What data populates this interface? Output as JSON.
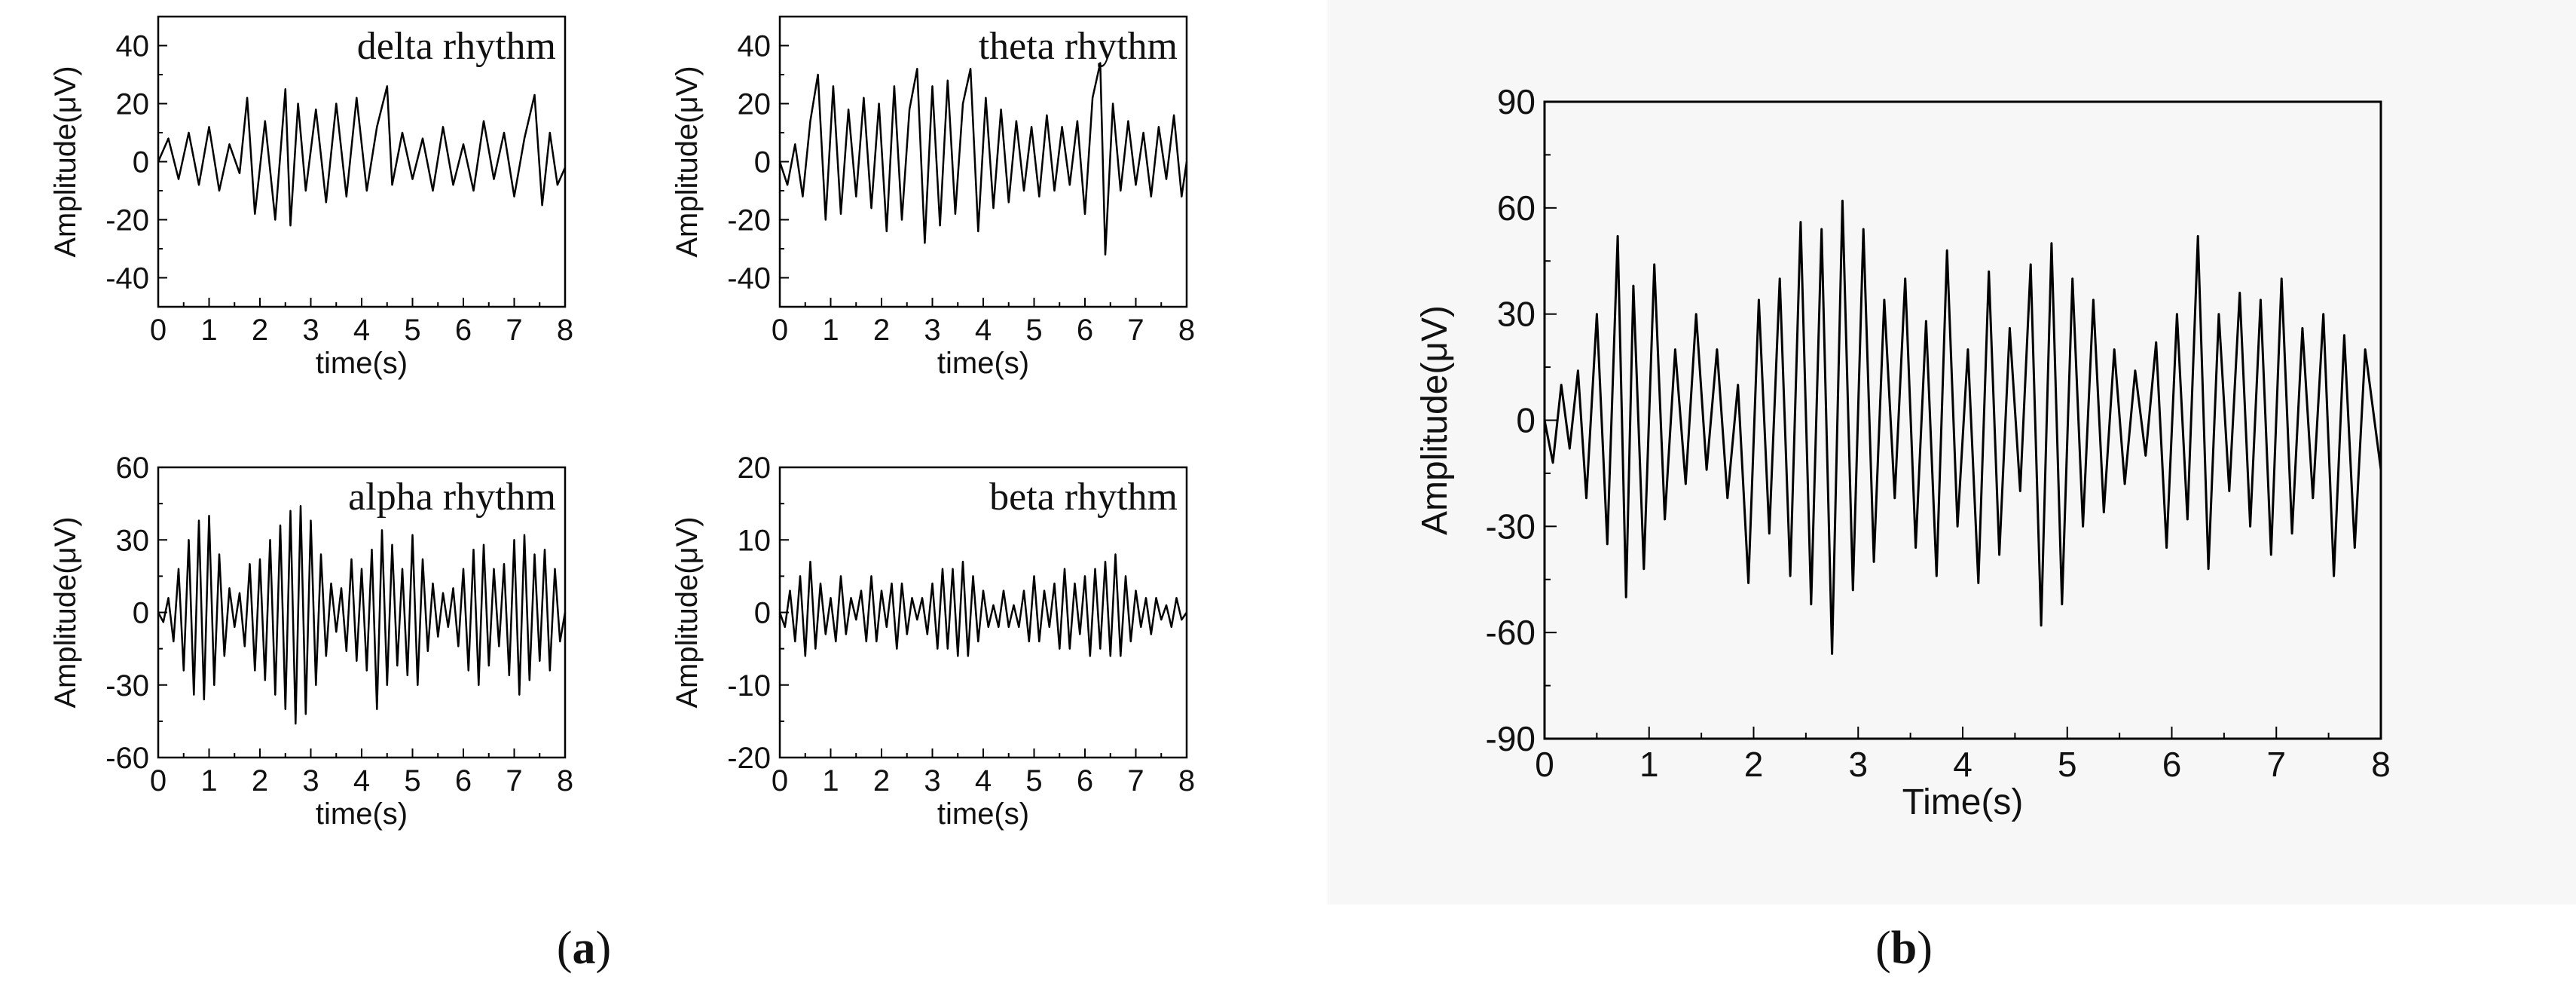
{
  "panels": {
    "a": {
      "open": "(",
      "letter": "a",
      "close": ")"
    },
    "b": {
      "open": "(",
      "letter": "b",
      "close": ")"
    }
  },
  "chart_data": [
    {
      "type": "line",
      "annotation": "delta rhythm",
      "xlabel": "time(s)",
      "ylabel": "Amplitude(μV)",
      "xlim": [
        0,
        8
      ],
      "ylim": [
        -50,
        50
      ],
      "xticks": [
        0,
        1,
        2,
        3,
        4,
        5,
        6,
        7,
        8
      ],
      "yticks": [
        -40,
        -20,
        0,
        20,
        40
      ],
      "grid": false,
      "series": [
        {
          "x": [
            0,
            0.2,
            0.4,
            0.6,
            0.8,
            1.0,
            1.2,
            1.4,
            1.6,
            1.75,
            1.9,
            2.1,
            2.3,
            2.5,
            2.6,
            2.75,
            2.9,
            3.1,
            3.3,
            3.5,
            3.7,
            3.9,
            4.1,
            4.3,
            4.5,
            4.6,
            4.8,
            5.0,
            5.2,
            5.4,
            5.6,
            5.8,
            6.0,
            6.2,
            6.4,
            6.6,
            6.8,
            7.0,
            7.2,
            7.4,
            7.55,
            7.7,
            7.85,
            8.0
          ],
          "y": [
            0,
            8,
            -6,
            10,
            -8,
            12,
            -10,
            6,
            -4,
            22,
            -18,
            14,
            -20,
            25,
            -22,
            20,
            -10,
            18,
            -14,
            20,
            -12,
            22,
            -10,
            12,
            26,
            -8,
            10,
            -6,
            8,
            -10,
            12,
            -8,
            6,
            -10,
            14,
            -6,
            10,
            -12,
            8,
            23,
            -15,
            10,
            -8,
            -2
          ]
        }
      ]
    },
    {
      "type": "line",
      "annotation": "theta rhythm",
      "xlabel": "time(s)",
      "ylabel": "Amplitude(μV)",
      "xlim": [
        0,
        8
      ],
      "ylim": [
        -50,
        50
      ],
      "xticks": [
        0,
        1,
        2,
        3,
        4,
        5,
        6,
        7,
        8
      ],
      "yticks": [
        -40,
        -20,
        0,
        20,
        40
      ],
      "grid": false,
      "series": [
        {
          "x": [
            0,
            0.15,
            0.3,
            0.45,
            0.6,
            0.75,
            0.9,
            1.05,
            1.2,
            1.35,
            1.5,
            1.65,
            1.8,
            1.95,
            2.1,
            2.25,
            2.4,
            2.55,
            2.7,
            2.85,
            3.0,
            3.15,
            3.3,
            3.45,
            3.6,
            3.75,
            3.9,
            4.05,
            4.2,
            4.35,
            4.5,
            4.65,
            4.8,
            4.95,
            5.1,
            5.25,
            5.4,
            5.55,
            5.7,
            5.85,
            6.0,
            6.15,
            6.3,
            6.4,
            6.55,
            6.7,
            6.85,
            7.0,
            7.15,
            7.3,
            7.45,
            7.6,
            7.75,
            7.9,
            8.0
          ],
          "y": [
            0,
            -8,
            6,
            -12,
            14,
            30,
            -20,
            26,
            -18,
            18,
            -12,
            22,
            -16,
            20,
            -24,
            26,
            -20,
            18,
            32,
            -28,
            26,
            -22,
            28,
            -18,
            20,
            32,
            -24,
            22,
            -16,
            18,
            -14,
            14,
            -10,
            12,
            -12,
            16,
            -10,
            12,
            -8,
            14,
            -18,
            22,
            34,
            -32,
            20,
            -10,
            14,
            -8,
            10,
            -12,
            12,
            -6,
            16,
            -12,
            0
          ]
        }
      ]
    },
    {
      "type": "line",
      "annotation": "alpha rhythm",
      "xlabel": "time(s)",
      "ylabel": "Amplitude(μV)",
      "xlim": [
        0,
        8
      ],
      "ylim": [
        -60,
        60
      ],
      "xticks": [
        0,
        1,
        2,
        3,
        4,
        5,
        6,
        7,
        8
      ],
      "yticks": [
        -60,
        -30,
        0,
        30,
        60
      ],
      "grid": false,
      "series": [
        {
          "x": [
            0,
            0.1,
            0.2,
            0.3,
            0.4,
            0.5,
            0.6,
            0.7,
            0.8,
            0.9,
            1.0,
            1.1,
            1.2,
            1.3,
            1.4,
            1.5,
            1.6,
            1.7,
            1.8,
            1.9,
            2.0,
            2.1,
            2.2,
            2.3,
            2.4,
            2.5,
            2.6,
            2.7,
            2.8,
            2.9,
            3.0,
            3.1,
            3.2,
            3.3,
            3.4,
            3.5,
            3.6,
            3.7,
            3.8,
            3.9,
            4.0,
            4.1,
            4.2,
            4.3,
            4.4,
            4.5,
            4.6,
            4.7,
            4.8,
            4.9,
            5.0,
            5.1,
            5.2,
            5.3,
            5.4,
            5.5,
            5.6,
            5.7,
            5.8,
            5.9,
            6.0,
            6.1,
            6.2,
            6.3,
            6.4,
            6.5,
            6.6,
            6.7,
            6.8,
            6.9,
            7.0,
            7.1,
            7.2,
            7.3,
            7.4,
            7.5,
            7.6,
            7.7,
            7.8,
            7.9,
            8.0
          ],
          "y": [
            0,
            -4,
            6,
            -12,
            18,
            -24,
            30,
            -34,
            38,
            -36,
            40,
            -30,
            24,
            -18,
            10,
            -6,
            8,
            -14,
            20,
            -24,
            22,
            -28,
            30,
            -34,
            36,
            -40,
            42,
            -46,
            44,
            -42,
            38,
            -30,
            24,
            -18,
            12,
            -8,
            10,
            -16,
            22,
            -20,
            18,
            -24,
            26,
            -40,
            34,
            -30,
            28,
            -22,
            18,
            -26,
            32,
            -30,
            22,
            -16,
            12,
            -10,
            8,
            -6,
            10,
            -14,
            18,
            -24,
            26,
            -30,
            28,
            -22,
            18,
            -14,
            20,
            -26,
            30,
            -34,
            32,
            -28,
            24,
            -20,
            26,
            -24,
            18,
            -12,
            0
          ]
        }
      ]
    },
    {
      "type": "line",
      "annotation": "beta rhythm",
      "xlabel": "time(s)",
      "ylabel": "Amplitude(μV)",
      "xlim": [
        0,
        8
      ],
      "ylim": [
        -20,
        20
      ],
      "xticks": [
        0,
        1,
        2,
        3,
        4,
        5,
        6,
        7,
        8
      ],
      "yticks": [
        -20,
        -10,
        0,
        10,
        20
      ],
      "grid": false,
      "series": [
        {
          "x": [
            0,
            0.1,
            0.2,
            0.3,
            0.4,
            0.5,
            0.6,
            0.7,
            0.8,
            0.9,
            1.0,
            1.1,
            1.2,
            1.3,
            1.4,
            1.5,
            1.6,
            1.7,
            1.8,
            1.9,
            2.0,
            2.1,
            2.2,
            2.3,
            2.4,
            2.5,
            2.6,
            2.7,
            2.8,
            2.9,
            3.0,
            3.1,
            3.2,
            3.3,
            3.4,
            3.5,
            3.6,
            3.7,
            3.8,
            3.9,
            4.0,
            4.1,
            4.2,
            4.3,
            4.4,
            4.5,
            4.6,
            4.7,
            4.8,
            4.9,
            5.0,
            5.1,
            5.2,
            5.3,
            5.4,
            5.5,
            5.6,
            5.7,
            5.8,
            5.9,
            6.0,
            6.1,
            6.2,
            6.3,
            6.4,
            6.5,
            6.6,
            6.7,
            6.8,
            6.9,
            7.0,
            7.1,
            7.2,
            7.3,
            7.4,
            7.5,
            7.6,
            7.7,
            7.8,
            7.9,
            8.0
          ],
          "y": [
            0,
            -2,
            3,
            -4,
            5,
            -6,
            7,
            -5,
            4,
            -3,
            2,
            -4,
            5,
            -3,
            2,
            -1,
            3,
            -4,
            5,
            -4,
            3,
            -2,
            4,
            -5,
            4,
            -3,
            2,
            -1,
            2,
            -3,
            4,
            -5,
            6,
            -5,
            6,
            -6,
            7,
            -6,
            5,
            -4,
            3,
            -2,
            1,
            -2,
            3,
            -2,
            1,
            -2,
            3,
            -4,
            5,
            -4,
            3,
            -2,
            4,
            -5,
            6,
            -5,
            4,
            -3,
            5,
            -6,
            6,
            -5,
            7,
            -6,
            8,
            -6,
            5,
            -4,
            3,
            -2,
            2,
            -3,
            2,
            -1,
            1,
            -2,
            2,
            -1,
            0
          ]
        }
      ]
    },
    {
      "type": "line",
      "xlabel": "Time(s)",
      "ylabel": "Amplitude(μV)",
      "xlim": [
        0,
        8
      ],
      "ylim": [
        -90,
        90
      ],
      "xticks": [
        0,
        1,
        2,
        3,
        4,
        5,
        6,
        7,
        8
      ],
      "yticks": [
        -90,
        -60,
        -30,
        0,
        30,
        60,
        90
      ],
      "grid": false,
      "series": [
        {
          "x": [
            0,
            0.08,
            0.16,
            0.24,
            0.32,
            0.4,
            0.5,
            0.6,
            0.7,
            0.78,
            0.85,
            0.95,
            1.05,
            1.15,
            1.25,
            1.35,
            1.45,
            1.55,
            1.65,
            1.75,
            1.85,
            1.95,
            2.05,
            2.15,
            2.25,
            2.35,
            2.45,
            2.55,
            2.65,
            2.75,
            2.85,
            2.95,
            3.05,
            3.15,
            3.25,
            3.35,
            3.45,
            3.55,
            3.65,
            3.75,
            3.85,
            3.95,
            4.05,
            4.15,
            4.25,
            4.35,
            4.45,
            4.55,
            4.65,
            4.75,
            4.85,
            4.95,
            5.05,
            5.15,
            5.25,
            5.35,
            5.45,
            5.55,
            5.65,
            5.75,
            5.85,
            5.95,
            6.05,
            6.15,
            6.25,
            6.35,
            6.45,
            6.55,
            6.65,
            6.75,
            6.85,
            6.95,
            7.05,
            7.15,
            7.25,
            7.35,
            7.45,
            7.55,
            7.65,
            7.75,
            7.85,
            8.0
          ],
          "y": [
            0,
            -12,
            10,
            -8,
            14,
            -22,
            30,
            -35,
            52,
            -50,
            38,
            -42,
            44,
            -28,
            20,
            -18,
            30,
            -14,
            20,
            -22,
            10,
            -46,
            34,
            -32,
            40,
            -44,
            56,
            -52,
            54,
            -66,
            62,
            -48,
            54,
            -40,
            34,
            -22,
            40,
            -36,
            28,
            -44,
            48,
            -30,
            20,
            -46,
            42,
            -38,
            26,
            -20,
            44,
            -58,
            50,
            -52,
            40,
            -30,
            34,
            -26,
            20,
            -18,
            14,
            -10,
            22,
            -36,
            30,
            -28,
            52,
            -42,
            30,
            -20,
            36,
            -30,
            34,
            -38,
            40,
            -32,
            26,
            -22,
            30,
            -44,
            24,
            -36,
            20,
            -14
          ]
        }
      ]
    }
  ]
}
